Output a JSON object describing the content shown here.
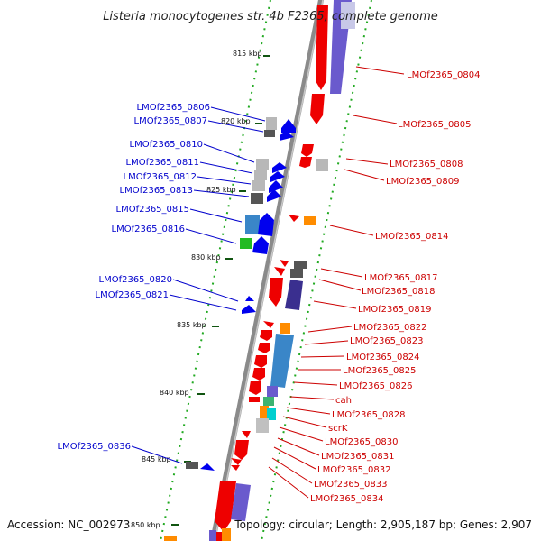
{
  "title": "Listeria monocytogenes str. 4b F2365, complete genome",
  "footer": {
    "accession": "Accession: NC_002973",
    "summary": "Topology: circular; Length: 2,905,187 bp; Genes: 2,907"
  },
  "scale_labels": [
    "815 kbp",
    "820 kbp",
    "825 kbp",
    "830 kbp",
    "835 kbp",
    "840 kbp",
    "845 kbp",
    "850 kbp"
  ],
  "colors": {
    "backbone": "#888888",
    "forward_gene": "#0000ee",
    "reverse_gene": "#ee0000",
    "left_label": "#0000cc",
    "right_label": "#cc0000",
    "guide_dots": "#22aa22"
  },
  "left_labels": [
    "LMOf2365_0806",
    "LMOf2365_0807",
    "LMOf2365_0810",
    "LMOf2365_0811",
    "LMOf2365_0812",
    "LMOf2365_0813",
    "LMOf2365_0815",
    "LMOf2365_0816",
    "LMOf2365_0820",
    "LMOf2365_0821",
    "LMOf2365_0836"
  ],
  "right_labels": [
    "LMOf2365_0804",
    "LMOf2365_0805",
    "LMOf2365_0808",
    "LMOf2365_0809",
    "LMOf2365_0814",
    "LMOf2365_0817",
    "LMOf2365_0818",
    "LMOf2365_0819",
    "LMOf2365_0822",
    "LMOf2365_0823",
    "LMOf2365_0824",
    "LMOf2365_0825",
    "LMOf2365_0826",
    "cah",
    "LMOf2365_0828",
    "scrK",
    "LMOf2365_0830",
    "LMOf2365_0831",
    "LMOf2365_0832",
    "LMOf2365_0833",
    "LMOf2365_0834"
  ]
}
